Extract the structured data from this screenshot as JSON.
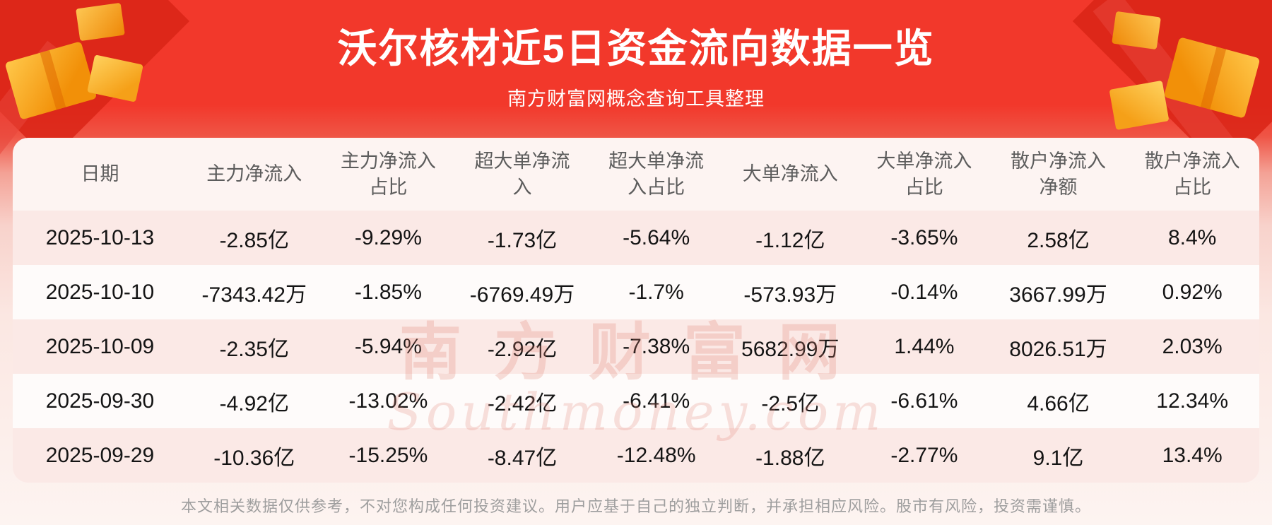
{
  "title": "沃尔核材近5日资金流向数据一览",
  "subtitle": "南方财富网概念查询工具整理",
  "watermark": {
    "cn": "南方财富网",
    "en": "Southmoney.com"
  },
  "disclaimer": "本文相关数据仅供参考，不对您构成任何投资建议。用户应基于自己的独立判断，并承担相应风险。股市有风险，投资需谨慎。",
  "colors": {
    "banner_red": "#f2382b",
    "ribbon_dark_red": "#d92516",
    "gift_gold": "#f29008",
    "row_pink": "#fbe9e6",
    "header_bg": "#fdf4f2",
    "data_text": "#141414",
    "header_text": "#5c5c5c",
    "disclaimer_text": "#9e9e9e",
    "watermark_pink": "#e08274"
  },
  "table": {
    "headers": [
      "日期",
      "主力净流入",
      "主力净流入占比",
      "超大单净流入",
      "超大单净流入占比",
      "大单净流入",
      "大单净流入占比",
      "散户净流入净额",
      "散户净流入占比"
    ],
    "rows": [
      [
        "2025-10-13",
        "-2.85亿",
        "-9.29%",
        "-1.73亿",
        "-5.64%",
        "-1.12亿",
        "-3.65%",
        "2.58亿",
        "8.4%"
      ],
      [
        "2025-10-10",
        "-7343.42万",
        "-1.85%",
        "-6769.49万",
        "-1.7%",
        "-573.93万",
        "-0.14%",
        "3667.99万",
        "0.92%"
      ],
      [
        "2025-10-09",
        "-2.35亿",
        "-5.94%",
        "-2.92亿",
        "-7.38%",
        "5682.99万",
        "1.44%",
        "8026.51万",
        "2.03%"
      ],
      [
        "2025-09-30",
        "-4.92亿",
        "-13.02%",
        "-2.42亿",
        "-6.41%",
        "-2.5亿",
        "-6.61%",
        "4.66亿",
        "12.34%"
      ],
      [
        "2025-09-29",
        "-10.36亿",
        "-15.25%",
        "-8.47亿",
        "-12.48%",
        "-1.88亿",
        "-2.77%",
        "9.1亿",
        "13.4%"
      ]
    ]
  },
  "chart_data": {
    "type": "table",
    "title": "沃尔核材近5日资金流向数据一览",
    "columns": [
      "日期",
      "主力净流入",
      "主力净流入占比",
      "超大单净流入",
      "超大单净流入占比",
      "大单净流入",
      "大单净流入占比",
      "散户净流入净额",
      "散户净流入占比"
    ],
    "rows": [
      [
        "2025-10-13",
        "-2.85亿",
        "-9.29%",
        "-1.73亿",
        "-5.64%",
        "-1.12亿",
        "-3.65%",
        "2.58亿",
        "8.4%"
      ],
      [
        "2025-10-10",
        "-7343.42万",
        "-1.85%",
        "-6769.49万",
        "-1.7%",
        "-573.93万",
        "-0.14%",
        "3667.99万",
        "0.92%"
      ],
      [
        "2025-10-09",
        "-2.35亿",
        "-5.94%",
        "-2.92亿",
        "-7.38%",
        "5682.99万",
        "1.44%",
        "8026.51万",
        "2.03%"
      ],
      [
        "2025-09-30",
        "-4.92亿",
        "-13.02%",
        "-2.42亿",
        "-6.41%",
        "-2.5亿",
        "-6.61%",
        "4.66亿",
        "12.34%"
      ],
      [
        "2025-09-29",
        "-10.36亿",
        "-15.25%",
        "-8.47亿",
        "-12.48%",
        "-1.88亿",
        "-2.77%",
        "9.1亿",
        "13.4%"
      ]
    ]
  }
}
